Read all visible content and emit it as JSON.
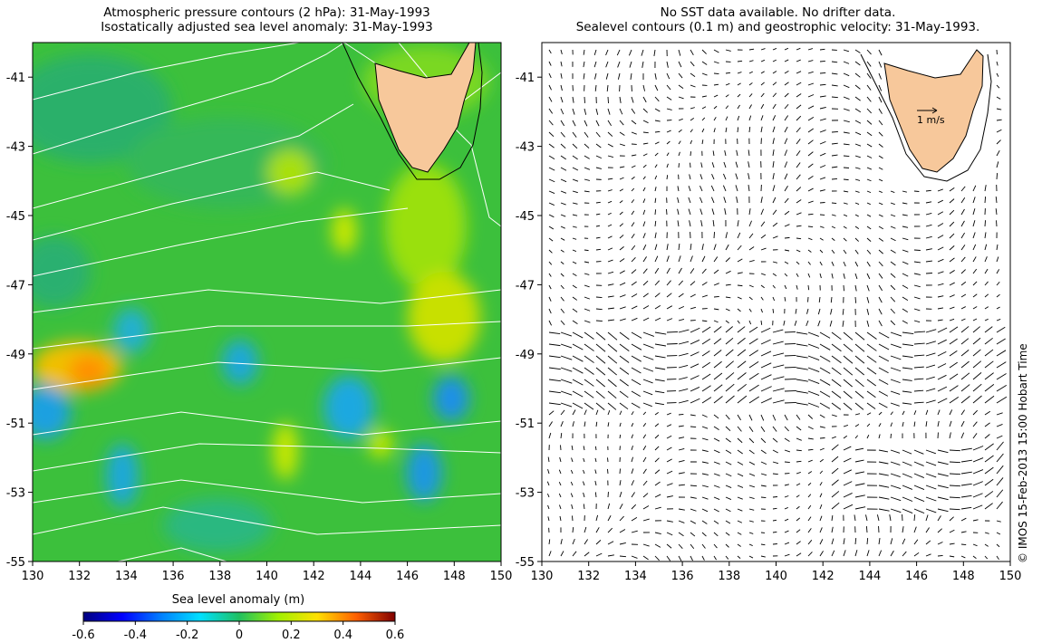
{
  "left_panel": {
    "title_line1": "Atmospheric pressure contours (2 hPa): 31-May-1993",
    "title_line2": "Isostatically adjusted sea level anomaly: 31-May-1993",
    "x_ticks": [
      "130",
      "132",
      "134",
      "136",
      "138",
      "140",
      "142",
      "144",
      "146",
      "148",
      "150"
    ],
    "y_ticks": [
      "-41",
      "-43",
      "-45",
      "-47",
      "-49",
      "-51",
      "-53",
      "-55"
    ]
  },
  "right_panel": {
    "title_line1": "No SST data available.  No drifter data.",
    "title_line2": "Sealevel contours (0.1 m) and geostrophic velocity: 31-May-1993.",
    "x_ticks": [
      "130",
      "132",
      "134",
      "136",
      "138",
      "140",
      "142",
      "144",
      "146",
      "148",
      "150"
    ],
    "y_ticks": [
      "-41",
      "-43",
      "-45",
      "-47",
      "-49",
      "-51",
      "-53",
      "-55"
    ],
    "vector_scale_label": "1 m/s"
  },
  "colorbar": {
    "label": "Sea level anomaly (m)",
    "ticks": [
      "-0.6",
      "-0.4",
      "-0.2",
      "0",
      "0.2",
      "0.4",
      "0.6"
    ]
  },
  "credit": "© IMOS 15-Feb-2013 15:00 Hobart Time",
  "map_extent": {
    "lon": [
      130,
      150
    ],
    "lat": [
      -55,
      -40
    ]
  },
  "colors": {
    "land": "#f7c89b",
    "background_anomaly": "#3cc03c",
    "pressure_contours": "#ffffff"
  }
}
